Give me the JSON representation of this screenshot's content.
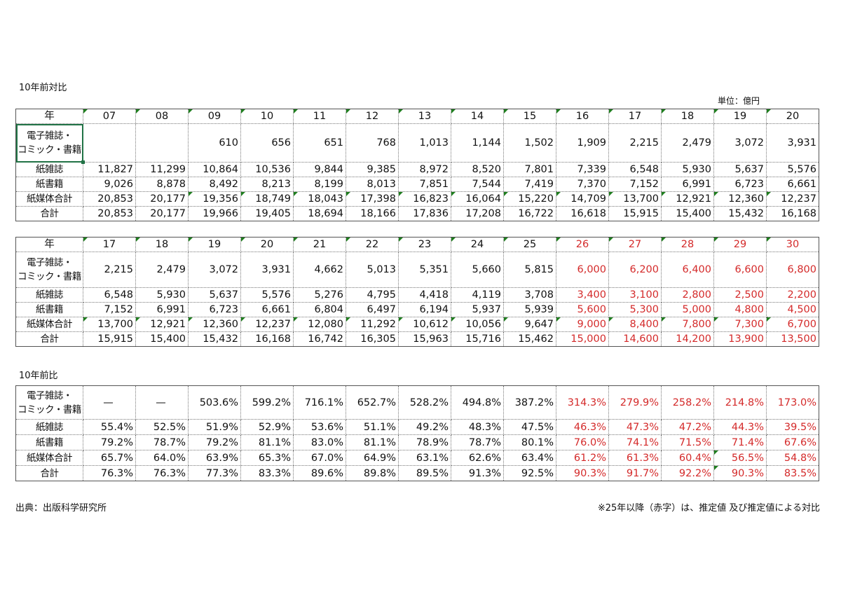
{
  "titles": {
    "section1": "10年前対比",
    "unit": "単位：億円",
    "section3": "10年前比",
    "source": "出典：出版科学研究所",
    "note": "※25年以降（赤字）は、推定値 及び推定値による対比"
  },
  "row_labels": {
    "year": "年",
    "digital_line1": "電子雑誌・",
    "digital_line2": "コミック・書籍",
    "paper_magazines": "紙雑誌",
    "paper_books": "紙書籍",
    "paper_total": "紙媒体合計",
    "total": "合計"
  },
  "colors": {
    "estimate": "#d42a2a",
    "indicator": "#1e7d1e"
  },
  "table1": {
    "years": [
      "07",
      "08",
      "09",
      "10",
      "11",
      "12",
      "13",
      "14",
      "15",
      "16",
      "17",
      "18",
      "19",
      "20"
    ],
    "digital": [
      "",
      "",
      "610",
      "656",
      "651",
      "768",
      "1,013",
      "1,144",
      "1,502",
      "1,909",
      "2,215",
      "2,479",
      "3,072",
      "3,931"
    ],
    "paper_magazines": [
      "11,827",
      "11,299",
      "10,864",
      "10,536",
      "9,844",
      "9,385",
      "8,972",
      "8,520",
      "7,801",
      "7,339",
      "6,548",
      "5,930",
      "5,637",
      "5,576"
    ],
    "paper_books": [
      "9,026",
      "8,878",
      "8,492",
      "8,213",
      "8,199",
      "8,013",
      "7,851",
      "7,544",
      "7,419",
      "7,370",
      "7,152",
      "6,991",
      "6,723",
      "6,661"
    ],
    "paper_total": [
      "20,853",
      "20,177",
      "19,356",
      "18,749",
      "18,043",
      "17,398",
      "16,823",
      "16,064",
      "15,220",
      "14,709",
      "13,700",
      "12,921",
      "12,360",
      "12,237"
    ],
    "total": [
      "20,853",
      "20,177",
      "19,966",
      "19,405",
      "18,694",
      "18,166",
      "17,836",
      "17,208",
      "16,722",
      "16,618",
      "15,915",
      "15,400",
      "15,432",
      "16,168"
    ]
  },
  "table2": {
    "years": [
      "17",
      "18",
      "19",
      "20",
      "21",
      "22",
      "23",
      "24",
      "25",
      "26",
      "27",
      "28",
      "29",
      "30"
    ],
    "digital": [
      "2,215",
      "2,479",
      "3,072",
      "3,931",
      "4,662",
      "5,013",
      "5,351",
      "5,660",
      "5,815",
      "6,000",
      "6,200",
      "6,400",
      "6,600",
      "6,800"
    ],
    "paper_magazines": [
      "6,548",
      "5,930",
      "5,637",
      "5,576",
      "5,276",
      "4,795",
      "4,418",
      "4,119",
      "3,708",
      "3,400",
      "3,100",
      "2,800",
      "2,500",
      "2,200"
    ],
    "paper_books": [
      "7,152",
      "6,991",
      "6,723",
      "6,661",
      "6,804",
      "6,497",
      "6,194",
      "5,937",
      "5,939",
      "5,600",
      "5,300",
      "5,000",
      "4,800",
      "4,500"
    ],
    "paper_total": [
      "13,700",
      "12,921",
      "12,360",
      "12,237",
      "12,080",
      "11,292",
      "10,612",
      "10,056",
      "9,647",
      "9,000",
      "8,400",
      "7,800",
      "7,300",
      "6,700"
    ],
    "total": [
      "15,915",
      "15,400",
      "15,432",
      "16,168",
      "16,742",
      "16,305",
      "15,963",
      "15,716",
      "15,462",
      "15,000",
      "14,600",
      "14,200",
      "13,900",
      "13,500"
    ]
  },
  "table3": {
    "digital": [
      "—",
      "—",
      "503.6%",
      "599.2%",
      "716.1%",
      "652.7%",
      "528.2%",
      "494.8%",
      "387.2%",
      "314.3%",
      "279.9%",
      "258.2%",
      "214.8%",
      "173.0%"
    ],
    "paper_magazines": [
      "55.4%",
      "52.5%",
      "51.9%",
      "52.9%",
      "53.6%",
      "51.1%",
      "49.2%",
      "48.3%",
      "47.5%",
      "46.3%",
      "47.3%",
      "47.2%",
      "44.3%",
      "39.5%"
    ],
    "paper_books": [
      "79.2%",
      "78.7%",
      "79.2%",
      "81.1%",
      "83.0%",
      "81.1%",
      "78.9%",
      "78.7%",
      "80.1%",
      "76.0%",
      "74.1%",
      "71.5%",
      "71.4%",
      "67.6%"
    ],
    "paper_total": [
      "65.7%",
      "64.0%",
      "63.9%",
      "65.3%",
      "67.0%",
      "64.9%",
      "63.1%",
      "62.6%",
      "63.4%",
      "61.2%",
      "61.3%",
      "60.4%",
      "56.5%",
      "54.8%"
    ],
    "total": [
      "76.3%",
      "76.3%",
      "77.3%",
      "83.3%",
      "89.6%",
      "89.8%",
      "89.5%",
      "91.3%",
      "92.5%",
      "90.3%",
      "91.7%",
      "92.2%",
      "90.3%",
      "83.5%"
    ]
  }
}
